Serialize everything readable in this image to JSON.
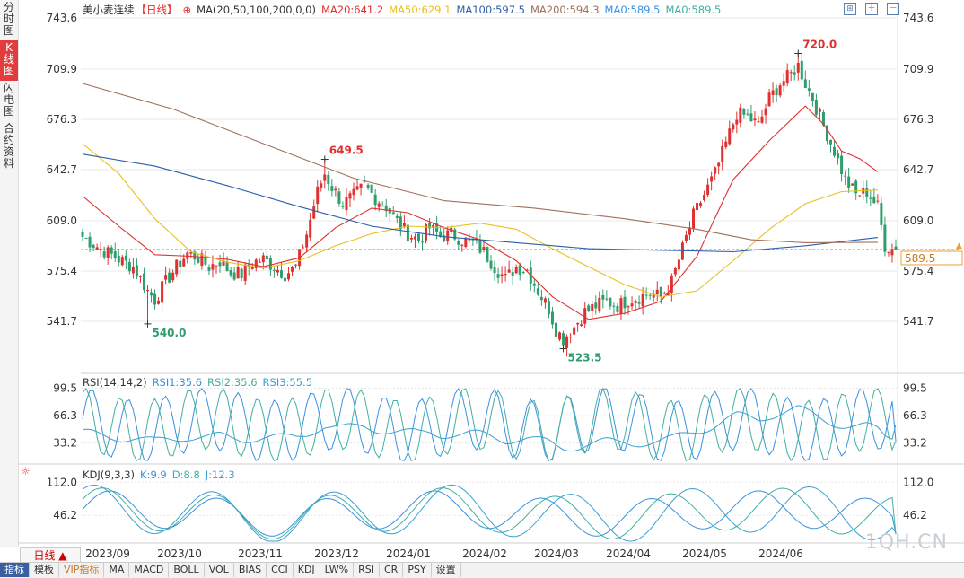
{
  "side_tabs": [
    "分时图",
    "K线图",
    "闪电图",
    "合约资料"
  ],
  "active_side_tab": 1,
  "main_legend": {
    "name": "美小麦连续",
    "period": "【日线】",
    "items": [
      {
        "text": "MA(20,50,100,200,0,0)",
        "color": "#333333"
      },
      {
        "text": "MA20:641.2",
        "color": "#e03030"
      },
      {
        "text": "MA50:629.1",
        "color": "#e8c020"
      },
      {
        "text": "MA100:597.5",
        "color": "#2a5fa8"
      },
      {
        "text": "MA200:594.3",
        "color": "#a0705a"
      },
      {
        "text": "MA0:589.5",
        "color": "#3a90e0"
      },
      {
        "text": "MA0:589.5",
        "color": "#40b0a0"
      }
    ]
  },
  "rsi_legend": {
    "items": [
      {
        "text": "RSI(14,14,2)",
        "color": "#333333"
      },
      {
        "text": "RSI1:35.6",
        "color": "#3a90e0"
      },
      {
        "text": "RSI2:35.6",
        "color": "#40b0a0"
      },
      {
        "text": "RSI3:55.5",
        "color": "#3aa0d0"
      }
    ]
  },
  "kdj_legend": {
    "items": [
      {
        "text": "KDJ(9,3,3)",
        "color": "#333333"
      },
      {
        "text": "K:9.9",
        "color": "#3a90e0"
      },
      {
        "text": "D:8.8",
        "color": "#40b0a0"
      },
      {
        "text": "J:12.3",
        "color": "#3aa0d0"
      }
    ]
  },
  "current_price_label": "589.5",
  "period_button": "日线 ▲",
  "bottom_tabs": [
    "指标",
    "模板",
    "VIP指标",
    "MA",
    "MACD",
    "BOLL",
    "VOL",
    "BIAS",
    "CCI",
    "KDJ",
    "LW%",
    "RSI",
    "CR",
    "PSY",
    "设置"
  ],
  "watermark": "1QH.CN",
  "colors": {
    "up": "#e03030",
    "down": "#2e9e6e",
    "grid": "#e8e8e8",
    "axis_text": "#333333"
  },
  "chart_data": [
    {
      "type": "candlestick",
      "title": "美小麦连续 日线",
      "x_labels": [
        "2023/09",
        "2023/10",
        "2023/11",
        "2023/12",
        "2024/01",
        "2024/02",
        "2024/03",
        "2024/04",
        "2024/05",
        "2024/06"
      ],
      "y_ticks": [
        541.7,
        575.4,
        609.0,
        642.7,
        676.3,
        709.9,
        743.6
      ],
      "ylim": [
        523.5,
        743.6
      ],
      "annotations": [
        {
          "date": "2023/10",
          "value": 540.0,
          "text": "540.0"
        },
        {
          "date": "2023/12",
          "value": 649.5,
          "text": "649.5"
        },
        {
          "date": "2024/03",
          "value": 523.5,
          "text": "523.5"
        },
        {
          "date": "2024/05",
          "value": 720.0,
          "text": "720.0"
        }
      ],
      "current_price": 589.5,
      "anchors": [
        [
          0,
          598
        ],
        [
          5,
          590
        ],
        [
          10,
          583
        ],
        [
          14,
          578
        ],
        [
          18,
          562
        ],
        [
          20,
          556
        ],
        [
          23,
          568
        ],
        [
          26,
          578
        ],
        [
          29,
          587
        ],
        [
          32,
          584
        ],
        [
          35,
          578
        ],
        [
          38,
          582
        ],
        [
          41,
          574
        ],
        [
          44,
          573
        ],
        [
          47,
          581
        ],
        [
          50,
          583
        ],
        [
          53,
          578
        ],
        [
          56,
          573
        ],
        [
          59,
          578
        ],
        [
          62,
          600
        ],
        [
          65,
          628
        ],
        [
          67,
          640
        ],
        [
          69,
          631
        ],
        [
          72,
          620
        ],
        [
          75,
          625
        ],
        [
          78,
          632
        ],
        [
          81,
          624
        ],
        [
          84,
          618
        ],
        [
          87,
          608
        ],
        [
          90,
          600
        ],
        [
          93,
          596
        ],
        [
          96,
          604
        ],
        [
          99,
          598
        ],
        [
          102,
          600
        ],
        [
          105,
          596
        ],
        [
          108,
          594
        ],
        [
          111,
          588
        ],
        [
          114,
          578
        ],
        [
          117,
          570
        ],
        [
          120,
          578
        ],
        [
          123,
          576
        ],
        [
          126,
          562
        ],
        [
          129,
          550
        ],
        [
          131,
          536
        ],
        [
          133,
          530
        ],
        [
          136,
          538
        ],
        [
          139,
          548
        ],
        [
          142,
          552
        ],
        [
          145,
          555
        ],
        [
          148,
          552
        ],
        [
          151,
          556
        ],
        [
          154,
          558
        ],
        [
          157,
          560
        ],
        [
          160,
          558
        ],
        [
          163,
          568
        ],
        [
          166,
          590
        ],
        [
          169,
          612
        ],
        [
          172,
          626
        ],
        [
          175,
          640
        ],
        [
          178,
          660
        ],
        [
          181,
          680
        ],
        [
          184,
          678
        ],
        [
          187,
          672
        ],
        [
          190,
          690
        ],
        [
          193,
          700
        ],
        [
          196,
          706
        ],
        [
          198,
          712
        ],
        [
          200,
          700
        ],
        [
          202,
          690
        ],
        [
          205,
          672
        ],
        [
          208,
          655
        ],
        [
          211,
          636
        ],
        [
          214,
          626
        ],
        [
          217,
          628
        ],
        [
          220,
          618
        ],
        [
          222,
          592
        ],
        [
          224,
          590
        ],
        [
          225,
          589.5
        ]
      ],
      "low_points": [
        [
          18,
          540.0
        ],
        [
          133,
          523.5
        ]
      ],
      "high_points": [
        [
          67,
          649.5
        ],
        [
          198,
          720.0
        ]
      ],
      "series": [
        {
          "name": "MA20",
          "color": "#e03030",
          "last": 641.2,
          "points": [
            [
              0,
              625
            ],
            [
              10,
              605
            ],
            [
              20,
              586
            ],
            [
              30,
              585
            ],
            [
              40,
              583
            ],
            [
              50,
              578
            ],
            [
              60,
              584
            ],
            [
              70,
              604
            ],
            [
              80,
              617
            ],
            [
              90,
              614
            ],
            [
              100,
              604
            ],
            [
              110,
              596
            ],
            [
              120,
              582
            ],
            [
              130,
              558
            ],
            [
              140,
              543
            ],
            [
              150,
              547
            ],
            [
              160,
              555
            ],
            [
              170,
              585
            ],
            [
              180,
              636
            ],
            [
              190,
              662
            ],
            [
              200,
              685
            ],
            [
              205,
              673
            ],
            [
              210,
              655
            ],
            [
              215,
              650
            ],
            [
              220,
              641.2
            ]
          ]
        },
        {
          "name": "MA50",
          "color": "#e8c020",
          "last": 629.1,
          "points": [
            [
              0,
              660
            ],
            [
              10,
              640
            ],
            [
              20,
              610
            ],
            [
              30,
              588
            ],
            [
              40,
              581
            ],
            [
              50,
              577
            ],
            [
              60,
              582
            ],
            [
              70,
              592
            ],
            [
              80,
              600
            ],
            [
              90,
              605
            ],
            [
              100,
              604
            ],
            [
              110,
              607
            ],
            [
              120,
              603
            ],
            [
              130,
              590
            ],
            [
              140,
              578
            ],
            [
              150,
              566
            ],
            [
              160,
              558
            ],
            [
              170,
              562
            ],
            [
              180,
              582
            ],
            [
              190,
              603
            ],
            [
              200,
              620
            ],
            [
              210,
              628
            ],
            [
              220,
              629.1
            ]
          ]
        },
        {
          "name": "MA100",
          "color": "#2a5fa8",
          "last": 597.5,
          "points": [
            [
              0,
              653
            ],
            [
              20,
              645
            ],
            [
              40,
              632
            ],
            [
              60,
              618
            ],
            [
              80,
              605
            ],
            [
              100,
              598
            ],
            [
              120,
              594
            ],
            [
              140,
              590
            ],
            [
              160,
              589
            ],
            [
              180,
              588
            ],
            [
              200,
              592
            ],
            [
              220,
              597.5
            ]
          ]
        },
        {
          "name": "MA200",
          "color": "#a0705a",
          "last": 594.3,
          "points": [
            [
              0,
              700
            ],
            [
              25,
              683
            ],
            [
              50,
              660
            ],
            [
              75,
              637
            ],
            [
              100,
              622
            ],
            [
              125,
              617
            ],
            [
              150,
              610
            ],
            [
              170,
              603
            ],
            [
              185,
              596
            ],
            [
              200,
              594
            ],
            [
              220,
              594.3
            ]
          ]
        }
      ]
    },
    {
      "type": "line",
      "title": "RSI(14,14,2)",
      "y_ticks": [
        33.2,
        66.3,
        99.5
      ],
      "ylim": [
        10,
        100
      ],
      "series": [
        {
          "name": "RSI1",
          "color": "#3a90e0",
          "last": 35.6
        },
        {
          "name": "RSI2",
          "color": "#40b0a0",
          "last": 35.6
        },
        {
          "name": "RSI3",
          "color": "#3aa0d0",
          "last": 55.5
        }
      ]
    },
    {
      "type": "line",
      "title": "KDJ(9,3,3)",
      "y_ticks": [
        46.2,
        112.0
      ],
      "ylim": [
        -5,
        125
      ],
      "series": [
        {
          "name": "K",
          "color": "#3a90e0",
          "last": 9.9
        },
        {
          "name": "D",
          "color": "#40b0a0",
          "last": 8.8
        },
        {
          "name": "J",
          "color": "#3aa0d0",
          "last": 12.3
        }
      ]
    }
  ]
}
